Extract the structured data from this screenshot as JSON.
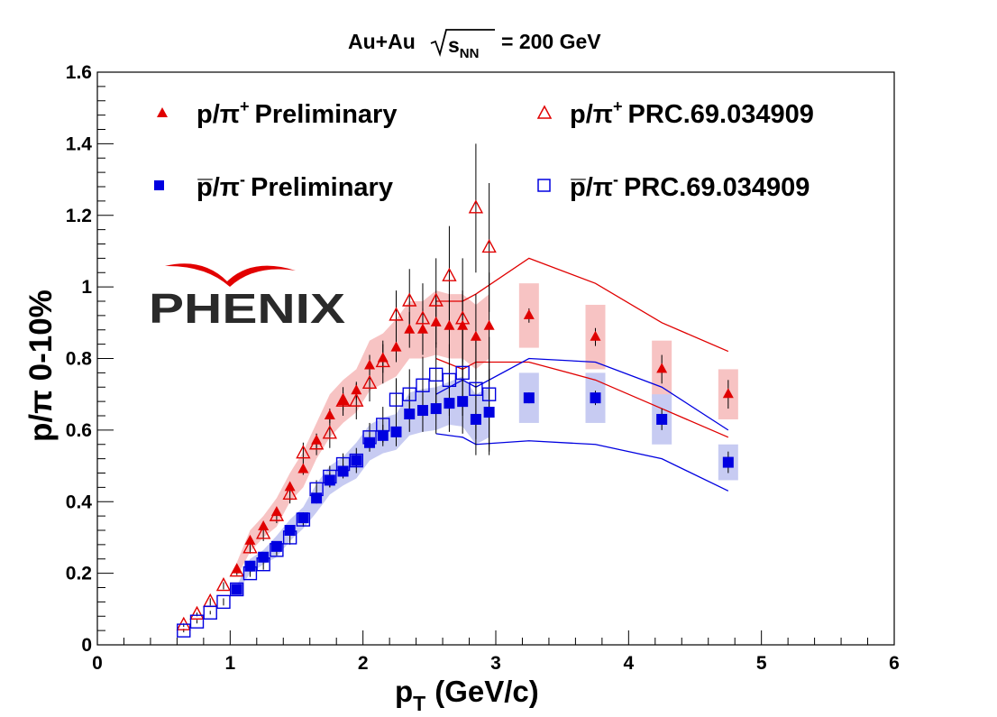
{
  "chart_data": {
    "type": "scatter",
    "title_prefix": "Au+Au",
    "title_root": "s",
    "title_root_sub": "NN",
    "title_suffix": "= 200 GeV",
    "xlabel_main": "p",
    "xlabel_sub": "T",
    "xlabel_rest": "(GeV/c)",
    "ylabel": "p/π 0-10%",
    "xlim": [
      0,
      6
    ],
    "ylim": [
      0,
      1.6
    ],
    "xticks": [
      "0",
      "1",
      "2",
      "3",
      "4",
      "5",
      "6"
    ],
    "yticks": [
      "0",
      "0.2",
      "0.4",
      "0.6",
      "0.8",
      "1",
      "1.2",
      "1.4",
      "1.6"
    ],
    "logo_text": "PHENIX",
    "legend": [
      {
        "marker": "filled-triangle",
        "color": "#e00000",
        "particle": "p/π",
        "charge": "+",
        "label": "Preliminary"
      },
      {
        "marker": "open-triangle",
        "color": "#e00000",
        "particle": "p/π",
        "charge": "+",
        "label": "PRC.69.034909"
      },
      {
        "marker": "filled-square",
        "color": "#0000e0",
        "particle": "p̅/π",
        "charge": "-",
        "label": "Preliminary"
      },
      {
        "marker": "open-square",
        "color": "#0000e0",
        "particle": "p̅/π",
        "charge": "-",
        "label": "PRC.69.034909"
      }
    ],
    "series": [
      {
        "name": "p/π+ Preliminary",
        "marker": "filled-triangle",
        "color": "#e00000",
        "band_color": "#f7c3c3",
        "x": [
          1.05,
          1.15,
          1.25,
          1.35,
          1.45,
          1.55,
          1.65,
          1.75,
          1.85,
          1.95,
          2.05,
          2.15,
          2.25,
          2.35,
          2.45,
          2.55,
          2.65,
          2.75,
          2.85,
          2.95,
          3.25,
          3.75,
          4.25,
          4.75
        ],
        "y": [
          0.21,
          0.29,
          0.33,
          0.37,
          0.44,
          0.49,
          0.57,
          0.64,
          0.68,
          0.71,
          0.78,
          0.8,
          0.83,
          0.88,
          0.88,
          0.9,
          0.89,
          0.89,
          0.86,
          0.89,
          0.92,
          0.86,
          0.77,
          0.7
        ],
        "err": [
          0.01,
          0.01,
          0.01,
          0.01,
          0.015,
          0.015,
          0.02,
          0.02,
          0.025,
          0.025,
          0.03,
          0.04,
          0.04,
          0.05,
          0.06,
          0.07,
          0.09,
          0.1,
          0.12,
          0.15,
          0.02,
          0.025,
          0.04,
          0.04
        ],
        "sys": [
          0.02,
          0.03,
          0.03,
          0.04,
          0.04,
          0.05,
          0.05,
          0.06,
          0.06,
          0.06,
          0.07,
          0.07,
          0.08,
          0.08,
          0.08,
          0.09,
          0.09,
          0.09,
          0.09,
          0.09,
          0.09,
          0.09,
          0.08,
          0.07
        ]
      },
      {
        "name": "p̅/π- Preliminary",
        "marker": "filled-square",
        "color": "#0000e0",
        "band_color": "#c7cbf2",
        "x": [
          1.05,
          1.15,
          1.25,
          1.35,
          1.45,
          1.55,
          1.65,
          1.75,
          1.85,
          1.95,
          2.05,
          2.15,
          2.25,
          2.35,
          2.45,
          2.55,
          2.65,
          2.75,
          2.85,
          2.95,
          3.25,
          3.75,
          4.25,
          4.75
        ],
        "y": [
          0.155,
          0.22,
          0.245,
          0.275,
          0.32,
          0.355,
          0.41,
          0.46,
          0.485,
          0.515,
          0.565,
          0.585,
          0.595,
          0.645,
          0.655,
          0.66,
          0.675,
          0.68,
          0.63,
          0.65,
          0.69,
          0.69,
          0.63,
          0.51
        ],
        "err": [
          0.01,
          0.01,
          0.01,
          0.01,
          0.01,
          0.015,
          0.015,
          0.02,
          0.02,
          0.02,
          0.025,
          0.03,
          0.04,
          0.05,
          0.06,
          0.07,
          0.08,
          0.09,
          0.1,
          0.12,
          0.015,
          0.02,
          0.03,
          0.03
        ],
        "sys": [
          0.01,
          0.02,
          0.02,
          0.03,
          0.03,
          0.03,
          0.04,
          0.04,
          0.04,
          0.05,
          0.05,
          0.05,
          0.05,
          0.06,
          0.06,
          0.06,
          0.06,
          0.07,
          0.07,
          0.07,
          0.07,
          0.07,
          0.07,
          0.05
        ]
      },
      {
        "name": "p/π+ PRC.69.034909",
        "marker": "open-triangle",
        "color": "#e00000",
        "x": [
          0.65,
          0.75,
          0.85,
          0.95,
          1.05,
          1.15,
          1.25,
          1.35,
          1.45,
          1.55,
          1.65,
          1.75,
          1.85,
          1.95,
          2.05,
          2.15,
          2.25,
          2.35,
          2.45,
          2.55,
          2.65,
          2.75,
          2.85,
          2.95
        ],
        "y": [
          0.055,
          0.085,
          0.12,
          0.165,
          0.205,
          0.27,
          0.31,
          0.36,
          0.42,
          0.535,
          0.56,
          0.59,
          0.68,
          0.68,
          0.73,
          0.79,
          0.92,
          0.96,
          0.91,
          0.96,
          1.03,
          0.91,
          1.22,
          1.11
        ],
        "err": [
          0.005,
          0.005,
          0.01,
          0.01,
          0.01,
          0.015,
          0.02,
          0.02,
          0.025,
          0.03,
          0.03,
          0.04,
          0.04,
          0.05,
          0.05,
          0.06,
          0.07,
          0.09,
          0.1,
          0.12,
          0.14,
          0.17,
          0.18,
          0.18
        ]
      },
      {
        "name": "p̅/π- PRC.69.034909",
        "marker": "open-square",
        "color": "#0000e0",
        "x": [
          0.65,
          0.75,
          0.85,
          0.95,
          1.05,
          1.15,
          1.25,
          1.35,
          1.45,
          1.55,
          1.65,
          1.75,
          1.85,
          1.95,
          2.05,
          2.15,
          2.25,
          2.35,
          2.45,
          2.55,
          2.65,
          2.75,
          2.85,
          2.95
        ],
        "y": [
          0.04,
          0.065,
          0.09,
          0.12,
          0.155,
          0.2,
          0.225,
          0.265,
          0.3,
          0.35,
          0.435,
          0.47,
          0.505,
          0.515,
          0.58,
          0.615,
          0.685,
          0.7,
          0.725,
          0.755,
          0.74,
          0.76,
          0.715,
          0.7
        ],
        "err": [
          0.005,
          0.005,
          0.005,
          0.01,
          0.01,
          0.01,
          0.015,
          0.015,
          0.02,
          0.02,
          0.025,
          0.03,
          0.03,
          0.035,
          0.04,
          0.05,
          0.06,
          0.07,
          0.08,
          0.09,
          0.1,
          0.12,
          0.14,
          0.16
        ]
      }
    ],
    "model_curves": [
      {
        "name": "p/π model upper",
        "color": "#e00000",
        "x": [
          2.55,
          2.75,
          2.85,
          3.25,
          3.75,
          4.25,
          4.75
        ],
        "y": [
          0.96,
          0.96,
          0.98,
          1.08,
          1.01,
          0.9,
          0.82
        ]
      },
      {
        "name": "p/π model lower",
        "color": "#e00000",
        "x": [
          2.55,
          2.75,
          2.85,
          3.25,
          3.75,
          4.25,
          4.75
        ],
        "y": [
          0.8,
          0.77,
          0.79,
          0.79,
          0.74,
          0.66,
          0.58
        ]
      },
      {
        "name": "pbar/π model upper",
        "color": "#0000e0",
        "x": [
          2.55,
          2.75,
          2.85,
          3.25,
          3.75,
          4.25,
          4.75
        ],
        "y": [
          0.7,
          0.74,
          0.72,
          0.8,
          0.79,
          0.72,
          0.6
        ]
      },
      {
        "name": "pbar/π model lower",
        "color": "#0000e0",
        "x": [
          2.55,
          2.75,
          2.85,
          3.25,
          3.75,
          4.25,
          4.75
        ],
        "y": [
          0.59,
          0.58,
          0.56,
          0.57,
          0.56,
          0.52,
          0.43
        ]
      }
    ]
  }
}
